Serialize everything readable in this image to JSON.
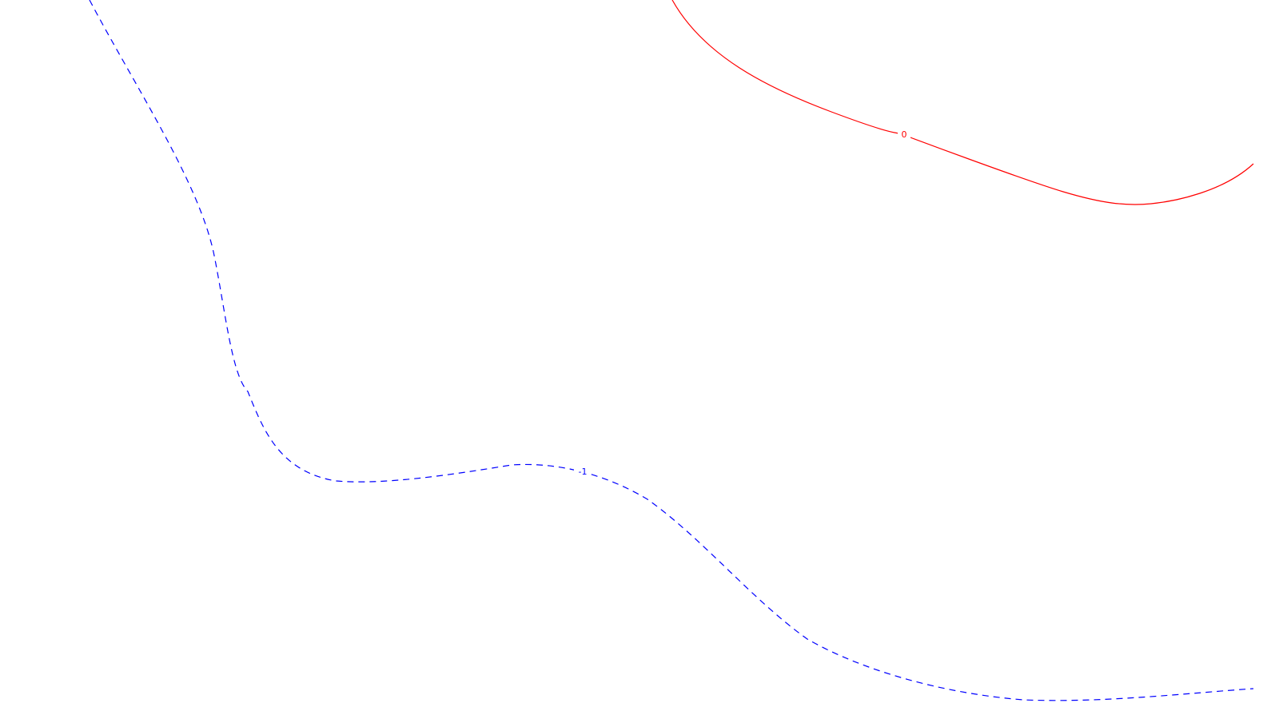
{
  "chart_data": {
    "type": "contour",
    "title": "",
    "xlabel": "",
    "ylabel": "",
    "grid": false,
    "contours": [
      {
        "label": "0",
        "color": "#ff0000",
        "line_style": "solid"
      },
      {
        "label": "-1",
        "color": "#0000ff",
        "line_style": "dashed"
      }
    ]
  }
}
